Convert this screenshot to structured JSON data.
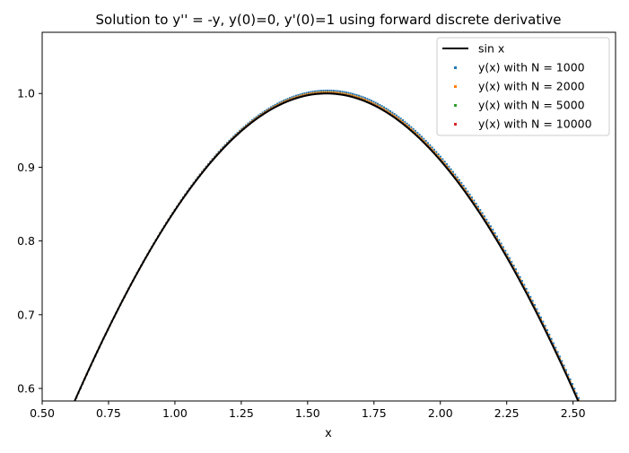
{
  "chart_data": {
    "type": "line",
    "title": "Solution to y'' = -y, y(0)=0, y'(0)=1 using forward discrete derivative",
    "xlabel": "x",
    "ylabel": "",
    "xlim": [
      0.5,
      2.66
    ],
    "ylim": [
      0.583,
      1.083
    ],
    "xticks": [
      "0.50",
      "0.75",
      "1.00",
      "1.25",
      "1.50",
      "1.75",
      "2.00",
      "2.25",
      "2.50"
    ],
    "yticks": [
      "0.6",
      "0.7",
      "0.8",
      "0.9",
      "1.0"
    ],
    "grid": false,
    "legend_position": "top-right",
    "series": [
      {
        "name": "sin x",
        "kind": "line",
        "color": "#000000",
        "function": "sin(x)"
      },
      {
        "name": "y(x) with N = 1000",
        "kind": "scatter",
        "color": "#1f77b4",
        "amplitude": 1.004,
        "phase": 0.004
      },
      {
        "name": "y(x) with N = 2000",
        "kind": "scatter",
        "color": "#ff7f0e",
        "amplitude": 1.002,
        "phase": 0.002
      },
      {
        "name": "y(x) with N = 5000",
        "kind": "scatter",
        "color": "#2ca02c",
        "amplitude": 1.0008,
        "phase": 0.0008
      },
      {
        "name": "y(x) with N = 10000",
        "kind": "scatter",
        "color": "#d62728",
        "amplitude": 1.0004,
        "phase": 0.0004
      }
    ]
  }
}
